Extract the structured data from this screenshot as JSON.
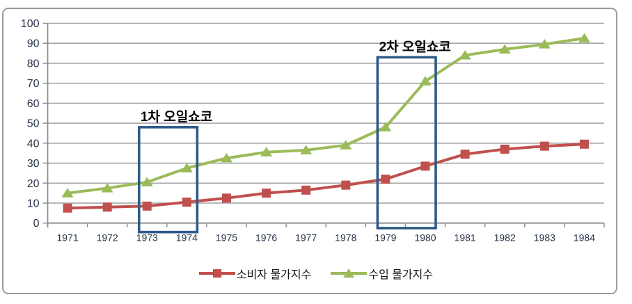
{
  "chart_data": {
    "type": "line",
    "title": "",
    "xlabel": "",
    "ylabel": "",
    "x": [
      "1971",
      "1972",
      "1973",
      "1974",
      "1975",
      "1976",
      "1977",
      "1978",
      "1979",
      "1980",
      "1981",
      "1982",
      "1983",
      "1984"
    ],
    "series": [
      {
        "key": "consumer-price-index",
        "name": "소비자 물가지수",
        "marker": "square",
        "color": "#C0504D",
        "values": [
          7.5,
          8,
          8.5,
          10.5,
          12.5,
          15,
          16.5,
          19,
          22,
          28.5,
          34.5,
          37,
          38.5,
          39.5
        ]
      },
      {
        "key": "import-price-index",
        "name": "수입 물가지수",
        "marker": "triangle",
        "color": "#9BBB59",
        "values": [
          15,
          17.5,
          20.5,
          27.5,
          32.5,
          35.5,
          36.5,
          39,
          48,
          71,
          84,
          87,
          89.5,
          92.5
        ]
      }
    ],
    "ylim": [
      0,
      100
    ],
    "yticks": [
      0,
      10,
      20,
      30,
      40,
      50,
      60,
      70,
      80,
      90,
      100
    ],
    "grid": "horizontal",
    "legend_position": "bottom-center",
    "annotations": [
      {
        "label": "1차 오일쇼코",
        "year_from": "1973",
        "year_to": "1974",
        "box_top_value": 48,
        "box_bottom_value": -4.5
      },
      {
        "label": "2차 오일쇼코",
        "year_from": "1979",
        "year_to": "1980",
        "box_top_value": 83,
        "box_bottom_value": -2.5
      }
    ],
    "colors": {
      "annotation_box": "#2E5A88",
      "gridline": "#A5A5A5",
      "axis": "#8E8E8E",
      "tick_text": "#273248",
      "annotation_text": "#000000",
      "frame_border": "#9B9B9B",
      "background": "#FFFFFF"
    }
  }
}
